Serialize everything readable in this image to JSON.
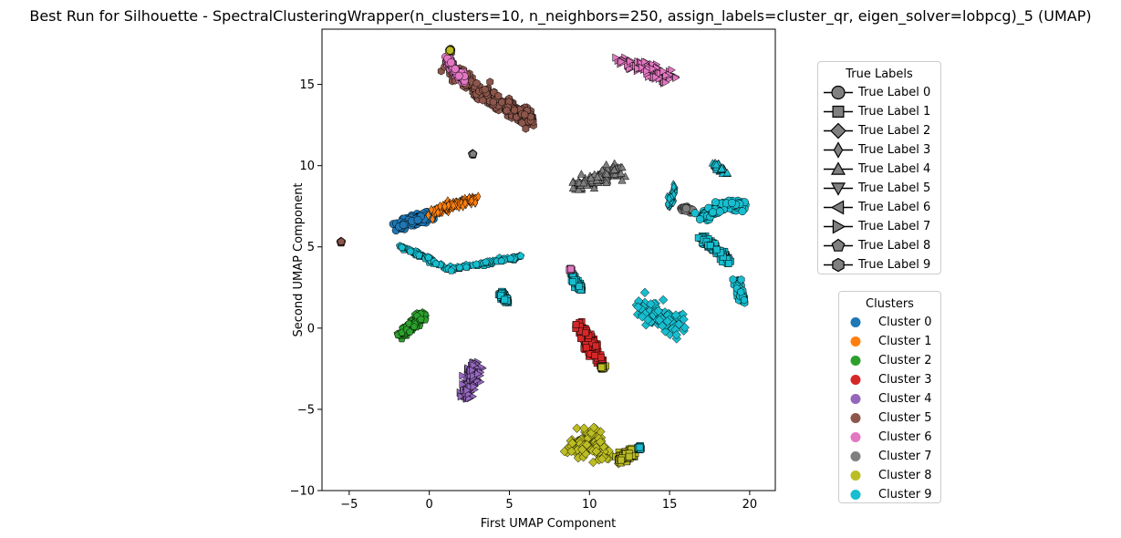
{
  "chart_data": {
    "type": "scatter",
    "title": "Best Run for Silhouette - SpectralClusteringWrapper(n_clusters=10, n_neighbors=250, assign_labels=cluster_qr, eigen_solver=lobpcg)_5 (UMAP)",
    "xlabel": "First UMAP Component",
    "ylabel": "Second UMAP Component",
    "xlim": [
      -6.7,
      21.6
    ],
    "ylim": [
      -10,
      18.4
    ],
    "xticks": [
      -5,
      0,
      5,
      10,
      15,
      20
    ],
    "yticks": [
      -10,
      -5,
      0,
      5,
      10,
      15
    ],
    "grid": false,
    "true_label_legend": {
      "title": "True Labels",
      "placement": "right-top",
      "entries": [
        {
          "label": "True Label 0",
          "marker": "circle"
        },
        {
          "label": "True Label 1",
          "marker": "square"
        },
        {
          "label": "True Label 2",
          "marker": "diamond"
        },
        {
          "label": "True Label 3",
          "marker": "thin-diamond"
        },
        {
          "label": "True Label 4",
          "marker": "triangle-up"
        },
        {
          "label": "True Label 5",
          "marker": "triangle-down"
        },
        {
          "label": "True Label 6",
          "marker": "triangle-left"
        },
        {
          "label": "True Label 7",
          "marker": "triangle-right"
        },
        {
          "label": "True Label 8",
          "marker": "pentagon"
        },
        {
          "label": "True Label 9",
          "marker": "hexagon"
        }
      ]
    },
    "cluster_legend": {
      "title": "Clusters",
      "placement": "right-bottom",
      "entries": [
        {
          "label": "Cluster 0",
          "color": "#1f77b4"
        },
        {
          "label": "Cluster 1",
          "color": "#ff7f0e"
        },
        {
          "label": "Cluster 2",
          "color": "#2ca02c"
        },
        {
          "label": "Cluster 3",
          "color": "#d62728"
        },
        {
          "label": "Cluster 4",
          "color": "#9467bd"
        },
        {
          "label": "Cluster 5",
          "color": "#8c564b"
        },
        {
          "label": "Cluster 6",
          "color": "#e377c2"
        },
        {
          "label": "Cluster 7",
          "color": "#7f7f7f"
        },
        {
          "label": "Cluster 8",
          "color": "#bcbd22"
        },
        {
          "label": "Cluster 9",
          "color": "#17becf"
        }
      ]
    },
    "groups": [
      {
        "cluster": 5,
        "true_label": 9,
        "x": [
          1.0,
          2.5,
          4.0,
          5.5,
          6.5
        ],
        "y": [
          16.5,
          15.0,
          14.0,
          13.3,
          12.7
        ],
        "spread": [
          0.4,
          0.5
        ]
      },
      {
        "cluster": 6,
        "true_label": 0,
        "x": [
          1.1,
          1.6,
          2.2
        ],
        "y": [
          16.6,
          15.8,
          15.3
        ],
        "spread": [
          0.1,
          0.2
        ]
      },
      {
        "cluster": 8,
        "true_label": 0,
        "x": [
          1.3
        ],
        "y": [
          17.1
        ],
        "spread": [
          0.05,
          0.05
        ]
      },
      {
        "cluster": 6,
        "true_label": 7,
        "x": [
          12.0,
          13.5,
          15.0
        ],
        "y": [
          16.4,
          16.0,
          15.4
        ],
        "spread": [
          0.4,
          0.4
        ]
      },
      {
        "cluster": 7,
        "true_label": 4,
        "x": [
          9.0,
          10.5,
          11.8
        ],
        "y": [
          8.7,
          9.3,
          9.8
        ],
        "spread": [
          0.5,
          0.4
        ]
      },
      {
        "cluster": 7,
        "true_label": 8,
        "x": [
          2.7
        ],
        "y": [
          10.7
        ],
        "spread": [
          0.05,
          0.05
        ]
      },
      {
        "cluster": 0,
        "true_label": 0,
        "x": [
          -2.0,
          -0.8,
          0.0
        ],
        "y": [
          6.3,
          6.7,
          6.9
        ],
        "spread": [
          0.3,
          0.3
        ]
      },
      {
        "cluster": 1,
        "true_label": 3,
        "x": [
          0.3,
          1.5,
          3.0
        ],
        "y": [
          7.1,
          7.6,
          8.0
        ],
        "spread": [
          0.3,
          0.2
        ]
      },
      {
        "cluster": 5,
        "true_label": 8,
        "x": [
          -5.5
        ],
        "y": [
          5.3
        ],
        "spread": [
          0.05,
          0.05
        ]
      },
      {
        "cluster": 9,
        "true_label": 8,
        "x": [
          -1.9,
          1.3,
          5.7
        ],
        "y": [
          5.1,
          3.6,
          4.4
        ],
        "spread": [
          0.1,
          0.1
        ]
      },
      {
        "cluster": 9,
        "true_label": 3,
        "x": [
          15.0,
          15.3
        ],
        "y": [
          7.5,
          8.6
        ],
        "spread": [
          0.15,
          0.2
        ]
      },
      {
        "cluster": 7,
        "true_label": 0,
        "x": [
          15.8,
          16.4
        ],
        "y": [
          7.4,
          7.2
        ],
        "spread": [
          0.15,
          0.1
        ]
      },
      {
        "cluster": 9,
        "true_label": 0,
        "x": [
          17.0,
          18.2,
          19.6
        ],
        "y": [
          6.8,
          7.4,
          7.6
        ],
        "spread": [
          0.3,
          0.3
        ]
      },
      {
        "cluster": 9,
        "true_label": 1,
        "x": [
          17.0,
          18.0,
          18.7
        ],
        "y": [
          5.6,
          4.8,
          4.1
        ],
        "spread": [
          0.2,
          0.2
        ]
      },
      {
        "cluster": 9,
        "true_label": 4,
        "x": [
          17.8,
          18.5
        ],
        "y": [
          10.1,
          9.6
        ],
        "spread": [
          0.15,
          0.15
        ]
      },
      {
        "cluster": 9,
        "true_label": 9,
        "x": [
          19.2,
          19.6
        ],
        "y": [
          2.8,
          1.8
        ],
        "spread": [
          0.2,
          0.3
        ]
      },
      {
        "cluster": 9,
        "true_label": 2,
        "x": [
          13.5,
          14.5,
          15.6
        ],
        "y": [
          1.3,
          0.5,
          0.1
        ],
        "spread": [
          0.6,
          0.6
        ]
      },
      {
        "cluster": 9,
        "true_label": 1,
        "x": [
          4.5,
          4.8
        ],
        "y": [
          2.1,
          1.7
        ],
        "spread": [
          0.15,
          0.15
        ]
      },
      {
        "cluster": 9,
        "true_label": 1,
        "x": [
          8.9,
          9.5
        ],
        "y": [
          3.2,
          2.3
        ],
        "spread": [
          0.15,
          0.2
        ]
      },
      {
        "cluster": 6,
        "true_label": 1,
        "x": [
          8.8
        ],
        "y": [
          3.6
        ],
        "spread": [
          0.05,
          0.05
        ]
      },
      {
        "cluster": 3,
        "true_label": 1,
        "x": [
          9.3,
          10.0,
          10.6
        ],
        "y": [
          0.2,
          -0.9,
          -1.8
        ],
        "spread": [
          0.35,
          0.4
        ]
      },
      {
        "cluster": 8,
        "true_label": 1,
        "x": [
          10.8
        ],
        "y": [
          -2.4
        ],
        "spread": [
          0.1,
          0.1
        ]
      },
      {
        "cluster": 2,
        "true_label": 8,
        "x": [
          -1.8,
          -1.0,
          -0.4
        ],
        "y": [
          -0.4,
          0.2,
          0.8
        ],
        "spread": [
          0.25,
          0.25
        ]
      },
      {
        "cluster": 4,
        "true_label": 7,
        "x": [
          2.3,
          2.7,
          2.9
        ],
        "y": [
          -4.2,
          -3.1,
          -2.2
        ],
        "spread": [
          0.4,
          0.4
        ]
      },
      {
        "cluster": 8,
        "true_label": 2,
        "x": [
          9.0,
          10.2,
          11.0
        ],
        "y": [
          -7.6,
          -6.6,
          -7.9
        ],
        "spread": [
          0.6,
          0.5
        ]
      },
      {
        "cluster": 8,
        "true_label": 1,
        "x": [
          11.8,
          12.6
        ],
        "y": [
          -8.1,
          -7.7
        ],
        "spread": [
          0.3,
          0.3
        ]
      },
      {
        "cluster": 9,
        "true_label": 1,
        "x": [
          13.1
        ],
        "y": [
          -7.4
        ],
        "spread": [
          0.1,
          0.1
        ]
      }
    ]
  }
}
